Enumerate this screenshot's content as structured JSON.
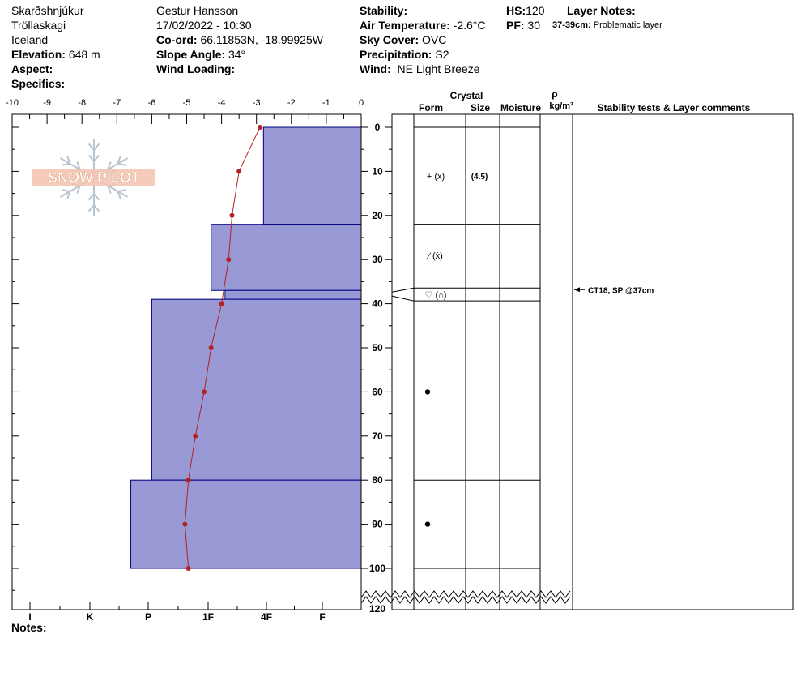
{
  "header": {
    "location": "Skarðshnjúkur",
    "region": "Tröllaskagi",
    "country": "Iceland",
    "elevation_label": "Elevation:",
    "elevation_value": "648 m",
    "aspect_label": "Aspect:",
    "specifics_label": "Specifics:",
    "observer": "Gestur Hansson",
    "datetime": "17/02/2022 - 10:30",
    "coord_label": "Co-ord:",
    "coord_value": "66.11853N, -18.99925W",
    "slope_label": "Slope Angle:",
    "slope_value": "34°",
    "wind_loading_label": "Wind Loading:",
    "stability_label": "Stability:",
    "air_temp_label": "Air Temperature:",
    "air_temp_value": "-2.6°C",
    "sky_label": "Sky Cover:",
    "sky_value": "OVC",
    "precip_label": "Precipitation:",
    "precip_value": "S2",
    "wind_label": "Wind:",
    "wind_value": "NE Light Breeze",
    "hs_label": "HS:",
    "hs_value": "120",
    "pf_label": "PF:",
    "pf_value": "30",
    "layer_notes_label": "Layer Notes:",
    "layer_note_depth": "37-39cm:",
    "layer_note_text": "Problematic layer",
    "notes_label": "Notes:"
  },
  "watermark": "SNOW PILOT",
  "columns": {
    "crystal": "Crystal",
    "form": "Form",
    "size": "Size",
    "moisture": "Moisture",
    "rho": "ρ",
    "density_unit": "kg/m³",
    "stability": "Stability tests & Layer comments"
  },
  "colors": {
    "hardness_fill": "#9999d6",
    "hardness_stroke": "#000080",
    "temperature": "#b22222"
  },
  "chart_data": {
    "type": "snow-profile",
    "temperature_axis": {
      "ticks": [
        "-10",
        "-9",
        "-8",
        "-7",
        "-6",
        "-5",
        "-4",
        "-3",
        "-2",
        "-1",
        "0"
      ],
      "range": [
        -10,
        0
      ]
    },
    "depth_axis": {
      "ticks": [
        "0",
        "10",
        "20",
        "30",
        "40",
        "50",
        "60",
        "70",
        "80",
        "90",
        "100",
        "120"
      ],
      "range": [
        0,
        120
      ]
    },
    "hardness_axis": [
      "I",
      "K",
      "P",
      "1F",
      "4F",
      "F"
    ],
    "hardness_layers": [
      {
        "top": 0,
        "bottom": 22,
        "temp_extent": -2.8
      },
      {
        "top": 22,
        "bottom": 37,
        "temp_extent": -4.3
      },
      {
        "top": 37,
        "bottom": 39,
        "temp_extent": -3.9
      },
      {
        "top": 39,
        "bottom": 80,
        "temp_extent": -6.0
      },
      {
        "top": 80,
        "bottom": 100,
        "temp_extent": -6.6
      }
    ],
    "temperature_profile": [
      {
        "depth": 0,
        "temp": -2.9
      },
      {
        "depth": 10,
        "temp": -3.5
      },
      {
        "depth": 20,
        "temp": -3.7
      },
      {
        "depth": 30,
        "temp": -3.8
      },
      {
        "depth": 40,
        "temp": -4.0
      },
      {
        "depth": 50,
        "temp": -4.3
      },
      {
        "depth": 60,
        "temp": -4.5
      },
      {
        "depth": 70,
        "temp": -4.75
      },
      {
        "depth": 80,
        "temp": -4.95
      },
      {
        "depth": 90,
        "temp": -5.05
      },
      {
        "depth": 100,
        "temp": -4.95
      }
    ],
    "layer_boundaries": [
      0,
      22,
      37,
      39,
      80,
      100
    ],
    "crystal_layers": [
      {
        "depth": 11,
        "form": "+ (ẋ)",
        "size": "(4.5)"
      },
      {
        "depth": 29,
        "form": "⁄ (ẋ)",
        "size": ""
      },
      {
        "depth": 38,
        "form": "♡ (⌂)",
        "size": ""
      },
      {
        "depth": 60,
        "form": "●",
        "size": ""
      },
      {
        "depth": 90,
        "form": "●",
        "size": ""
      }
    ],
    "stability_tests": [
      {
        "depth": 37,
        "text": "CT18, SP @37cm"
      }
    ]
  }
}
